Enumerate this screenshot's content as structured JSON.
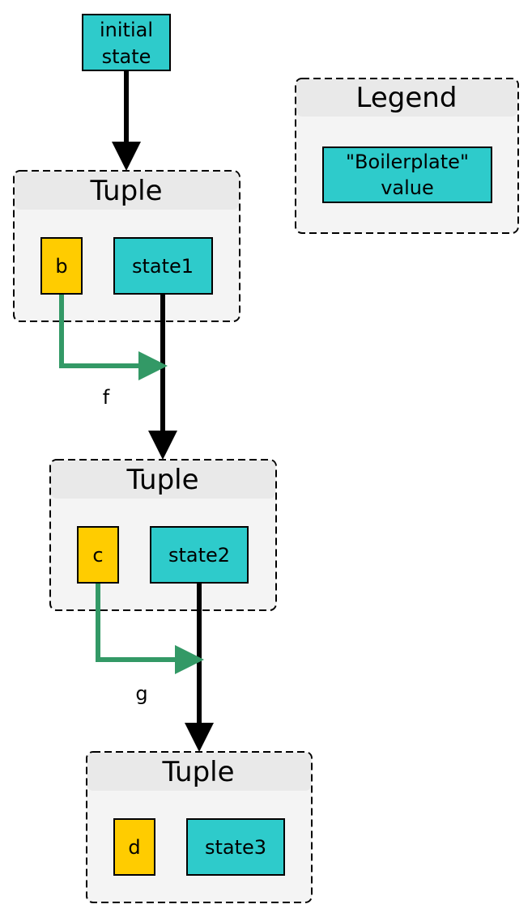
{
  "initial_node": {
    "line1": "initial",
    "line2": "state"
  },
  "legend": {
    "title": "Legend",
    "boilerplate_line1": "\"Boilerplate\"",
    "boilerplate_line2": "value",
    "boilerplate_color": "#2ecbcb"
  },
  "tuples": [
    {
      "title": "Tuple",
      "side_value": "b",
      "state_value": "state1"
    },
    {
      "title": "Tuple",
      "side_value": "c",
      "state_value": "state2"
    },
    {
      "title": "Tuple",
      "side_value": "d",
      "state_value": "state3"
    }
  ],
  "functions": [
    "f",
    "g"
  ],
  "colors": {
    "boilerplate": "#2ecbcb",
    "value": "#ffcc00",
    "side_arrow": "#339966",
    "main_arrow": "#000000",
    "group_fill": "#f4f4f4",
    "group_header": "#e9e9e9"
  }
}
